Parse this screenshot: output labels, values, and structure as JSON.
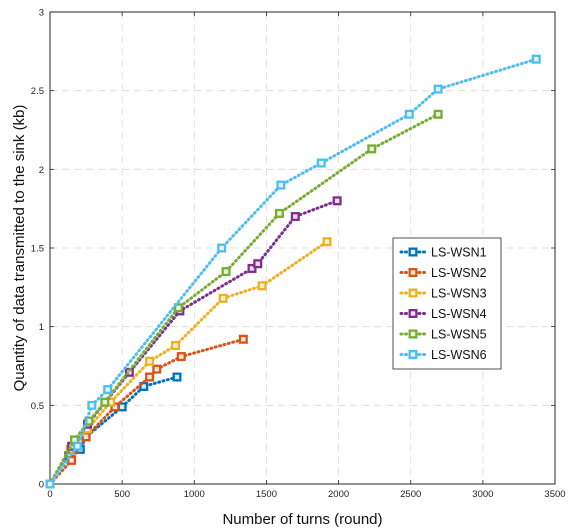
{
  "chart_data": {
    "type": "line",
    "xlabel": "Number of turns (round)",
    "ylabel": "Quantity of data transmitted to the sink (kb)",
    "xlim": [
      0,
      3500
    ],
    "ylim": [
      0,
      3
    ],
    "xticks": [
      0,
      500,
      1000,
      1500,
      2000,
      2500,
      3000,
      3500
    ],
    "yticks": [
      0,
      0.5,
      1,
      1.5,
      2,
      2.5,
      3
    ],
    "xtick_labels": [
      "0",
      "500",
      "1000",
      "1500",
      "2000",
      "2500",
      "3000",
      "3500"
    ],
    "ytick_labels": [
      "0",
      "0.5",
      "1",
      "1.5",
      "2",
      "2.5",
      "3"
    ],
    "grid": true,
    "grid_style": "dashed",
    "line_style": "dotted",
    "marker": "square",
    "legend_position": "right-middle",
    "series": [
      {
        "name": "LS-WSN1",
        "color": "#0072BD",
        "points": [
          [
            0,
            0
          ],
          [
            130,
            0.18
          ],
          [
            210,
            0.22
          ],
          [
            250,
            0.3
          ],
          [
            500,
            0.49
          ],
          [
            650,
            0.62
          ],
          [
            880,
            0.68
          ]
        ]
      },
      {
        "name": "LS-WSN2",
        "color": "#D95319",
        "points": [
          [
            0,
            0
          ],
          [
            150,
            0.15
          ],
          [
            250,
            0.3
          ],
          [
            450,
            0.49
          ],
          [
            690,
            0.68
          ],
          [
            740,
            0.73
          ],
          [
            910,
            0.81
          ],
          [
            1340,
            0.92
          ]
        ]
      },
      {
        "name": "LS-WSN3",
        "color": "#EDB120",
        "points": [
          [
            0,
            0
          ],
          [
            140,
            0.22
          ],
          [
            260,
            0.35
          ],
          [
            420,
            0.52
          ],
          [
            690,
            0.78
          ],
          [
            870,
            0.88
          ],
          [
            1200,
            1.18
          ],
          [
            1470,
            1.26
          ],
          [
            1920,
            1.54
          ]
        ]
      },
      {
        "name": "LS-WSN4",
        "color": "#7E2F8E",
        "points": [
          [
            0,
            0
          ],
          [
            150,
            0.24
          ],
          [
            260,
            0.38
          ],
          [
            550,
            0.71
          ],
          [
            900,
            1.1
          ],
          [
            1400,
            1.37
          ],
          [
            1440,
            1.4
          ],
          [
            1700,
            1.7
          ],
          [
            1990,
            1.8
          ]
        ]
      },
      {
        "name": "LS-WSN5",
        "color": "#77AC30",
        "points": [
          [
            0,
            0
          ],
          [
            170,
            0.28
          ],
          [
            270,
            0.4
          ],
          [
            380,
            0.52
          ],
          [
            890,
            1.12
          ],
          [
            1220,
            1.35
          ],
          [
            1590,
            1.72
          ],
          [
            2230,
            2.13
          ],
          [
            2690,
            2.35
          ]
        ]
      },
      {
        "name": "LS-WSN6",
        "color": "#4DBEEE",
        "points": [
          [
            0,
            0
          ],
          [
            190,
            0.24
          ],
          [
            290,
            0.5
          ],
          [
            400,
            0.6
          ],
          [
            1190,
            1.5
          ],
          [
            1600,
            1.9
          ],
          [
            1880,
            2.04
          ],
          [
            2490,
            2.35
          ],
          [
            2690,
            2.51
          ],
          [
            3370,
            2.7
          ]
        ]
      }
    ]
  }
}
